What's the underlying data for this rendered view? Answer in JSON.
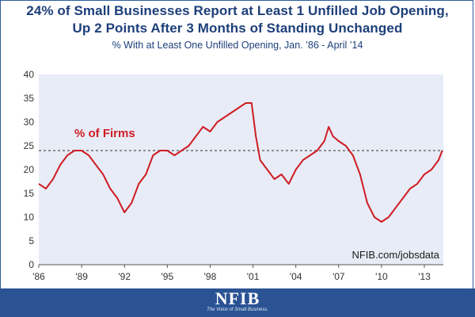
{
  "title_line1": "24% of Small Businesses Report at Least 1 Unfilled Job Opening,",
  "title_line2": "Up 2 Points After 3 Months of Standing Unchanged",
  "subtitle": "% With at Least One Unfilled Opening, Jan. ’86 - April ’14",
  "source": "NFIB.com/jobsdata",
  "logo": {
    "text": "NFIB",
    "tagline": "The Voice of Small Business."
  },
  "colors": {
    "line": "#d01c24",
    "title": "#1d3f7a",
    "plot_bg": "#e7ecf6",
    "reference": "#555555",
    "footer": "#2b5394"
  },
  "chart_data": {
    "type": "line",
    "series": [
      {
        "name": "% of Firms",
        "x": [
          1986.0,
          1986.5,
          1987.0,
          1987.5,
          1988.0,
          1988.5,
          1989.0,
          1989.5,
          1990.0,
          1990.5,
          1991.0,
          1991.5,
          1992.0,
          1992.5,
          1993.0,
          1993.5,
          1994.0,
          1994.5,
          1995.0,
          1995.5,
          1996.0,
          1996.5,
          1997.0,
          1997.5,
          1998.0,
          1998.5,
          1999.0,
          1999.5,
          2000.0,
          2000.5,
          2000.9,
          2001.2,
          2001.5,
          2002.0,
          2002.5,
          2003.0,
          2003.5,
          2004.0,
          2004.5,
          2005.0,
          2005.5,
          2006.0,
          2006.3,
          2006.6,
          2007.0,
          2007.5,
          2008.0,
          2008.5,
          2009.0,
          2009.5,
          2010.0,
          2010.5,
          2011.0,
          2011.5,
          2012.0,
          2012.5,
          2013.0,
          2013.5,
          2014.0,
          2014.25
        ],
        "values": [
          17,
          16,
          18,
          21,
          23,
          24,
          24,
          23,
          21,
          19,
          16,
          14,
          11,
          13,
          17,
          19,
          23,
          24,
          24,
          23,
          24,
          25,
          27,
          29,
          28,
          30,
          31,
          32,
          33,
          34,
          34,
          27,
          22,
          20,
          18,
          19,
          17,
          20,
          22,
          23,
          24,
          26,
          29,
          27,
          26,
          25,
          23,
          19,
          13,
          10,
          9,
          10,
          12,
          14,
          16,
          17,
          19,
          20,
          22,
          24
        ]
      }
    ],
    "title": "24% of Small Businesses Report at Least 1 Unfilled Job Opening, Up 2 Points After 3 Months of Standing Unchanged",
    "subtitle": "% With at Least One Unfilled Opening, Jan. ’86 - April ’14",
    "xlabel": "",
    "ylabel": "",
    "xlim": [
      1986,
      2014.33
    ],
    "ylim": [
      0,
      40
    ],
    "x_tick_values": [
      1986,
      1989,
      1992,
      1995,
      1998,
      2001,
      2004,
      2007,
      2010,
      2013
    ],
    "x_tick_labels": [
      "'86",
      "'89",
      "'92",
      "'95",
      "'98",
      "'01",
      "'04",
      "'07",
      "'10",
      "'13"
    ],
    "y_ticks": [
      0,
      5,
      10,
      15,
      20,
      25,
      30,
      35,
      40
    ],
    "reference_line": {
      "value": 24,
      "style": "dashed"
    },
    "series_label": "% of Firms",
    "grid": false,
    "legend": "none"
  }
}
